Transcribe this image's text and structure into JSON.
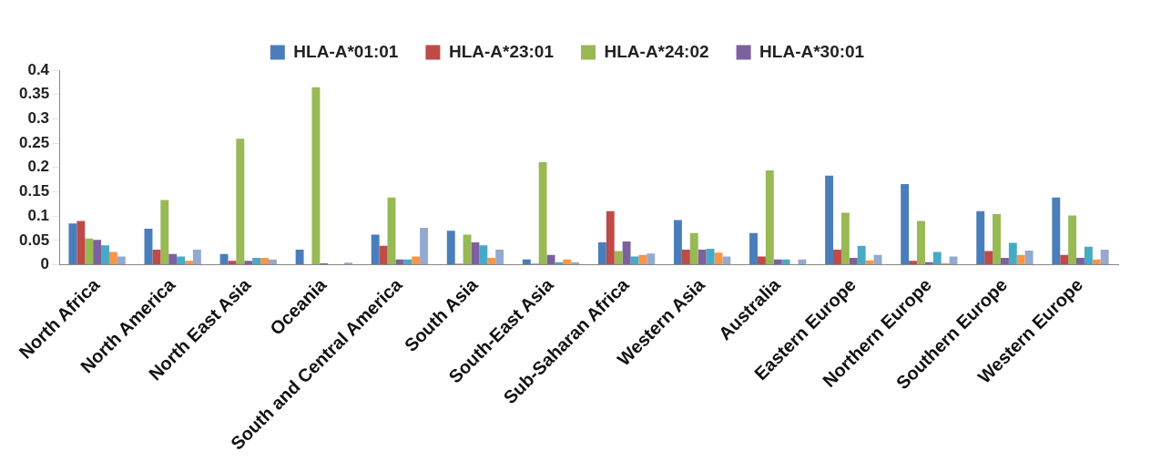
{
  "chart_data": {
    "type": "bar",
    "categories": [
      "North Africa",
      "North America",
      "North East Asia",
      "Oceania",
      "South and Central America",
      "South Asia",
      "South-East Asia",
      "Sub-Saharan Africa",
      "Western Asia",
      "Australia",
      "Eastern Europe",
      "Northern Europe",
      "Southern Europe",
      "Western Europe"
    ],
    "series": [
      {
        "name": "HLA-A*01:01",
        "color": "#4a7ebb",
        "values": [
          0.085,
          0.074,
          0.022,
          0.031,
          0.062,
          0.07,
          0.011,
          0.046,
          0.092,
          0.065,
          0.183,
          0.166,
          0.11,
          0.138
        ]
      },
      {
        "name": "HLA-A*23:01",
        "color": "#be4b48",
        "values": [
          0.09,
          0.031,
          0.008,
          0,
          0.039,
          0.002,
          0.002,
          0.11,
          0.031,
          0.017,
          0.031,
          0.008,
          0.028,
          0.02
        ]
      },
      {
        "name": "HLA-A*24:02",
        "color": "#98b954",
        "values": [
          0.054,
          0.133,
          0.259,
          0.365,
          0.138,
          0.062,
          0.211,
          0.028,
          0.065,
          0.194,
          0.107,
          0.09,
          0.104,
          0.101
        ]
      },
      {
        "name": "HLA-A*30:01",
        "color": "#7d60a0",
        "values": [
          0.051,
          0.022,
          0.008,
          0.003,
          0.011,
          0.046,
          0.02,
          0.048,
          0.031,
          0.011,
          0.014,
          0.005,
          0.014,
          0.014
        ]
      },
      {
        "color": "#46aac5",
        "values": [
          0.04,
          0.017,
          0.014,
          0,
          0.011,
          0.04,
          0.005,
          0.017,
          0.033,
          0.011,
          0.039,
          0.026,
          0.045,
          0.037
        ]
      },
      {
        "color": "#f79646",
        "values": [
          0.026,
          0.008,
          0.014,
          0,
          0.017,
          0.014,
          0.011,
          0.02,
          0.025,
          0,
          0.009,
          0.003,
          0.02,
          0.011
        ]
      },
      {
        "color": "#93a9d0",
        "values": [
          0.017,
          0.031,
          0.011,
          0.004,
          0.076,
          0.031,
          0.005,
          0.023,
          0.017,
          0.011,
          0.02,
          0.017,
          0.029,
          0.031
        ]
      }
    ],
    "ylim": [
      0,
      0.4
    ],
    "yticks": [
      0,
      0.05,
      0.1,
      0.15,
      0.2,
      0.25,
      0.3,
      0.35,
      0.4
    ],
    "grid": false,
    "legend": "top"
  }
}
